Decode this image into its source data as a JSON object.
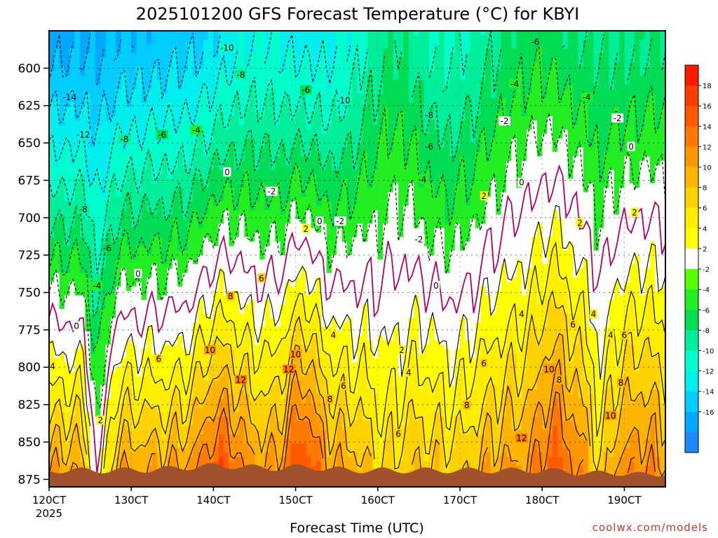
{
  "chart_data": {
    "type": "heatmap",
    "title": "2025101200 GFS Forecast Temperature (°C) for KBYI",
    "xlabel": "Forecast Time (UTC)",
    "ylabel": "",
    "credit": "coolwx.com/models",
    "x_ticks": [
      "120CT",
      "130CT",
      "140CT",
      "150CT",
      "160CT",
      "170CT",
      "180CT",
      "190CT"
    ],
    "x_year": "2025",
    "x_range_hours": [
      0,
      180
    ],
    "x_tick_hours": [
      0,
      24,
      48,
      72,
      96,
      120,
      144,
      168
    ],
    "y_ticks": [
      "600",
      "625",
      "650",
      "675",
      "700",
      "725",
      "750",
      "775",
      "800",
      "825",
      "850",
      "875"
    ],
    "y_range_hpa": [
      575,
      880
    ],
    "colorbar": {
      "labels": [
        "18",
        "16",
        "14",
        "12",
        "10",
        "8",
        "6",
        "4",
        "2",
        "-2",
        "-4",
        "-6",
        "-8",
        "-10",
        "-12",
        "-14",
        "-16"
      ],
      "colors": [
        "#ff1800",
        "#ff3c00",
        "#ff5a00",
        "#ff7800",
        "#ff9600",
        "#ffb400",
        "#ffd200",
        "#ffed00",
        "#ffff00",
        "#ffffff",
        "#55ff00",
        "#22ee22",
        "#00dd55",
        "#00ee99",
        "#00ffcc",
        "#00eeee",
        "#00ccff",
        "#00a8ff",
        "#1e88ff"
      ]
    },
    "contour_labels": [
      {
        "t": "-14",
        "h": 6,
        "p": 620
      },
      {
        "t": "-12",
        "h": 10,
        "p": 645
      },
      {
        "t": "-8",
        "h": 22,
        "p": 648
      },
      {
        "t": "-6",
        "h": 33,
        "p": 645
      },
      {
        "t": "-4",
        "h": 43,
        "p": 642
      },
      {
        "t": "-10",
        "h": 52,
        "p": 587
      },
      {
        "t": "-8",
        "h": 56,
        "p": 605
      },
      {
        "t": "-6",
        "h": 75,
        "p": 615
      },
      {
        "t": "-10",
        "h": 86,
        "p": 622
      },
      {
        "t": "-8",
        "h": 111,
        "p": 632
      },
      {
        "t": "-6",
        "h": 111,
        "p": 653
      },
      {
        "t": "-4",
        "h": 136,
        "p": 611
      },
      {
        "t": "-6",
        "h": 142,
        "p": 583
      },
      {
        "t": "-4",
        "h": 157,
        "p": 620
      },
      {
        "t": "-2",
        "h": 133,
        "p": 636
      },
      {
        "t": "-2",
        "h": 166,
        "p": 634
      },
      {
        "t": "-8",
        "h": 10,
        "p": 695
      },
      {
        "t": "-6",
        "h": 17,
        "p": 721
      },
      {
        "t": "-4",
        "h": 14,
        "p": 746
      },
      {
        "t": "-4",
        "h": 109,
        "p": 675
      },
      {
        "t": "0",
        "h": 52,
        "p": 670
      },
      {
        "t": "-2",
        "h": 65,
        "p": 683
      },
      {
        "t": "0",
        "h": 79,
        "p": 703
      },
      {
        "t": "-2",
        "h": 85,
        "p": 703
      },
      {
        "t": "-2",
        "h": 108,
        "p": 715
      },
      {
        "t": "0",
        "h": 26,
        "p": 738
      },
      {
        "t": "0",
        "h": 8,
        "p": 773
      },
      {
        "t": "0",
        "h": 113,
        "p": 746
      },
      {
        "t": "0",
        "h": 138,
        "p": 677
      },
      {
        "t": "0",
        "h": 170,
        "p": 653
      },
      {
        "t": "2",
        "h": 127,
        "p": 686
      },
      {
        "t": "2",
        "h": 155,
        "p": 704
      },
      {
        "t": "2",
        "h": 171,
        "p": 697
      },
      {
        "t": "2",
        "h": 75,
        "p": 708
      },
      {
        "t": "2",
        "h": 103,
        "p": 789
      },
      {
        "t": "2",
        "h": 15,
        "p": 836
      },
      {
        "t": "4",
        "h": 1,
        "p": 800
      },
      {
        "t": "4",
        "h": 83,
        "p": 779
      },
      {
        "t": "4",
        "h": 105,
        "p": 804
      },
      {
        "t": "4",
        "h": 138,
        "p": 765
      },
      {
        "t": "4",
        "h": 159,
        "p": 765
      },
      {
        "t": "4",
        "h": 164,
        "p": 779
      },
      {
        "t": "6",
        "h": 32,
        "p": 795
      },
      {
        "t": "6",
        "h": 62,
        "p": 741
      },
      {
        "t": "6",
        "h": 86,
        "p": 813
      },
      {
        "t": "6",
        "h": 102,
        "p": 845
      },
      {
        "t": "6",
        "h": 127,
        "p": 798
      },
      {
        "t": "6",
        "h": 153,
        "p": 772
      },
      {
        "t": "6",
        "h": 168,
        "p": 779
      },
      {
        "t": "8",
        "h": 53,
        "p": 753
      },
      {
        "t": "8",
        "h": 82,
        "p": 822
      },
      {
        "t": "8",
        "h": 122,
        "p": 826
      },
      {
        "t": "8",
        "h": 149,
        "p": 809
      },
      {
        "t": "8",
        "h": 167,
        "p": 811
      },
      {
        "t": "10",
        "h": 47,
        "p": 789
      },
      {
        "t": "10",
        "h": 72,
        "p": 792
      },
      {
        "t": "10",
        "h": 146,
        "p": 802
      },
      {
        "t": "10",
        "h": 164,
        "p": 833
      },
      {
        "t": "12",
        "h": 56,
        "p": 809
      },
      {
        "t": "12",
        "h": 70,
        "p": 802
      },
      {
        "t": "12",
        "h": 138,
        "p": 848
      }
    ]
  }
}
